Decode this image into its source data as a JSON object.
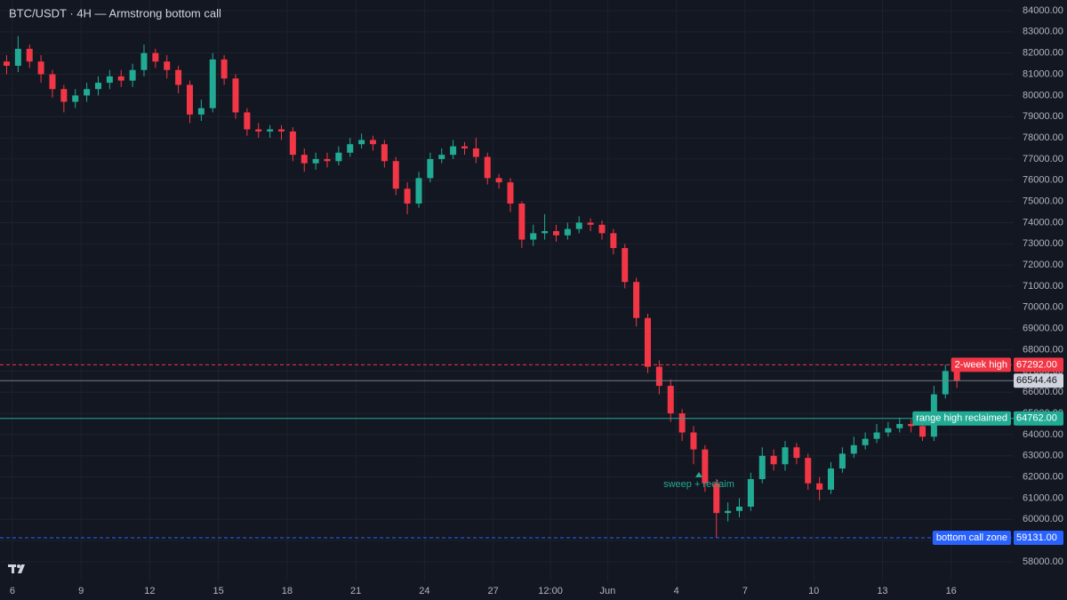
{
  "chart_data": {
    "type": "candlestick",
    "title": "BTC/USDT · 4H — Armstrong bottom call",
    "up_color": "#22ab94",
    "down_color": "#f23645",
    "grid": true,
    "x": [
      -0.25,
      0.25,
      0.75,
      1.25,
      1.75,
      2.25,
      2.75,
      3.25,
      3.75,
      4.25,
      4.75,
      5.25,
      5.75,
      6.25,
      6.75,
      7.25,
      7.75,
      8.25,
      8.75,
      9.25,
      9.75,
      10.25,
      10.75,
      11.25,
      11.75,
      12.25,
      12.75,
      13.25,
      13.75,
      14.25,
      14.75,
      15.25,
      15.75,
      16.25,
      16.75,
      17.25,
      17.75,
      18.25,
      18.75,
      19.25,
      19.75,
      20.25,
      20.75,
      21.25,
      21.75,
      22.25,
      22.75,
      23.25,
      23.75,
      24.25,
      24.75,
      25.25,
      25.75,
      26.25,
      26.75,
      27.25,
      27.75,
      28.25,
      28.75,
      29.25,
      29.75,
      30.25,
      30.75,
      31.25,
      31.75,
      32.25,
      32.75,
      33.25,
      33.75,
      34.25,
      34.75,
      35.25,
      35.75,
      36.25,
      36.75,
      37.25,
      37.75,
      38.25,
      38.75,
      39.25,
      39.75,
      40.25,
      40.75,
      41.25
    ],
    "open": [
      81600,
      81400,
      82200,
      81600,
      81000,
      80300,
      79700,
      80000,
      80300,
      80600,
      80900,
      80700,
      81200,
      82000,
      81600,
      81200,
      80500,
      79100,
      79400,
      81700,
      80800,
      79200,
      78400,
      78300,
      78400,
      78300,
      77200,
      76800,
      77000,
      76900,
      77300,
      77700,
      77900,
      77700,
      76900,
      75600,
      74900,
      76100,
      77000,
      77200,
      77600,
      77500,
      77100,
      76100,
      75900,
      74900,
      73200,
      73500,
      73600,
      73400,
      73700,
      74000,
      73900,
      73500,
      72800,
      71200,
      69500,
      67200,
      66300,
      65000,
      64100,
      63300,
      61700,
      60300,
      60400,
      60600,
      61900,
      63000,
      62600,
      63400,
      62900,
      61700,
      61400,
      62400,
      63100,
      63500,
      63800,
      64100,
      64300,
      64500,
      64400,
      63900,
      65900,
      67000
    ],
    "high": [
      81900,
      82800,
      82400,
      81900,
      81200,
      80500,
      80300,
      80600,
      80900,
      81200,
      81200,
      81500,
      82400,
      82200,
      81900,
      81400,
      80700,
      79800,
      82000,
      81900,
      81000,
      79400,
      78700,
      78600,
      78600,
      78500,
      77500,
      77300,
      77300,
      77600,
      78000,
      78200,
      78100,
      77900,
      77100,
      75900,
      76400,
      77300,
      77500,
      77900,
      77800,
      78000,
      77300,
      76300,
      76100,
      75000,
      73900,
      74400,
      73900,
      74000,
      74300,
      74200,
      74100,
      73700,
      73000,
      71400,
      69700,
      67500,
      66600,
      65200,
      64400,
      63500,
      61900,
      60800,
      61000,
      62200,
      63400,
      63300,
      63700,
      63600,
      63100,
      62000,
      62700,
      63400,
      63900,
      64100,
      64500,
      64600,
      64800,
      64700,
      64600,
      66300,
      67292,
      67100
    ],
    "low": [
      81000,
      81100,
      81300,
      80600,
      79900,
      79200,
      79400,
      79700,
      80000,
      80300,
      80400,
      80400,
      80900,
      81300,
      80800,
      80100,
      78700,
      78800,
      79200,
      80500,
      78900,
      78100,
      78000,
      78000,
      77900,
      76900,
      76400,
      76500,
      76600,
      76700,
      77100,
      77500,
      77400,
      76600,
      75300,
      74400,
      74700,
      75900,
      76800,
      77000,
      77200,
      76800,
      75800,
      75600,
      74500,
      72800,
      72900,
      73200,
      73100,
      73200,
      73500,
      73600,
      73200,
      72500,
      70900,
      69100,
      66900,
      65900,
      64600,
      63700,
      62600,
      61300,
      59150,
      59900,
      60100,
      60400,
      61700,
      62300,
      62300,
      62600,
      61400,
      60900,
      61200,
      62200,
      62900,
      63300,
      63600,
      63900,
      64100,
      64100,
      63700,
      63700,
      65700,
      66200
    ],
    "close": [
      81400,
      82200,
      81600,
      81000,
      80300,
      79700,
      80000,
      80300,
      80600,
      80900,
      80700,
      81200,
      82000,
      81600,
      81200,
      80500,
      79100,
      79400,
      81700,
      80800,
      79200,
      78400,
      78300,
      78400,
      78300,
      77200,
      76800,
      77000,
      76900,
      77300,
      77700,
      77900,
      77700,
      76900,
      75600,
      74900,
      76100,
      77000,
      77200,
      77600,
      77500,
      77100,
      76100,
      75900,
      74900,
      73200,
      73500,
      73600,
      73400,
      73700,
      74000,
      73900,
      73500,
      72800,
      71200,
      69500,
      67200,
      66300,
      65000,
      64100,
      63300,
      61700,
      60300,
      60400,
      60600,
      61900,
      63000,
      62600,
      63400,
      62900,
      61700,
      61400,
      62400,
      63100,
      63500,
      63800,
      64100,
      64300,
      64500,
      64400,
      63900,
      65900,
      67000,
      66540
    ],
    "xlim": [
      -0.54,
      43.73
    ],
    "xticks": [
      {
        "value": 0,
        "label": "6"
      },
      {
        "value": 3,
        "label": "9"
      },
      {
        "value": 6,
        "label": "12"
      },
      {
        "value": 9,
        "label": "15"
      },
      {
        "value": 12,
        "label": "18"
      },
      {
        "value": 15,
        "label": "21"
      },
      {
        "value": 18,
        "label": "24"
      },
      {
        "value": 21,
        "label": "27"
      },
      {
        "value": 23.5,
        "label": "12:00"
      },
      {
        "value": 26,
        "label": "Jun"
      },
      {
        "value": 29,
        "label": "4"
      },
      {
        "value": 32,
        "label": "7"
      },
      {
        "value": 35,
        "label": "10"
      },
      {
        "value": 38,
        "label": "13"
      },
      {
        "value": 41,
        "label": "16"
      }
    ],
    "ylim": [
      57035,
      84503
    ],
    "yticks": [
      {
        "value": 58000,
        "label": "58000.00"
      },
      {
        "value": 59000,
        "label": "59000.00"
      },
      {
        "value": 60000,
        "label": "60000.00"
      },
      {
        "value": 61000,
        "label": "61000.00"
      },
      {
        "value": 62000,
        "label": "62000.00"
      },
      {
        "value": 63000,
        "label": "63000.00"
      },
      {
        "value": 64000,
        "label": "64000.00"
      },
      {
        "value": 65000,
        "label": "65000.00"
      },
      {
        "value": 66000,
        "label": "66000.00"
      },
      {
        "value": 67000,
        "label": "67000.00"
      },
      {
        "value": 68000,
        "label": "68000.00"
      },
      {
        "value": 69000,
        "label": "69000.00"
      },
      {
        "value": 70000,
        "label": "70000.00"
      },
      {
        "value": 71000,
        "label": "71000.00"
      },
      {
        "value": 72000,
        "label": "72000.00"
      },
      {
        "value": 73000,
        "label": "73000.00"
      },
      {
        "value": 74000,
        "label": "74000.00"
      },
      {
        "value": 75000,
        "label": "75000.00"
      },
      {
        "value": 76000,
        "label": "76000.00"
      },
      {
        "value": 77000,
        "label": "77000.00"
      },
      {
        "value": 78000,
        "label": "78000.00"
      },
      {
        "value": 79000,
        "label": "79000.00"
      },
      {
        "value": 80000,
        "label": "80000.00"
      },
      {
        "value": 81000,
        "label": "81000.00"
      },
      {
        "value": 82000,
        "label": "82000.00"
      },
      {
        "value": 83000,
        "label": "83000.00"
      },
      {
        "value": 84000,
        "label": "84000.00"
      }
    ],
    "price_lines": [
      {
        "name": "2-week high",
        "value": 67292,
        "value_label": "67292.00",
        "color": "#f23645",
        "style": "dashed"
      },
      {
        "name": "range high reclaimed",
        "value": 64762,
        "value_label": "64762.00",
        "color": "#22ab94",
        "style": "solid"
      },
      {
        "name": "bottom call zone",
        "value": 59131,
        "value_label": "59131.00",
        "color": "#2962ff",
        "style": "dashed"
      }
    ],
    "last_price": {
      "value": 66544.46,
      "label": "66544.46",
      "color": "#787b86"
    },
    "annotation": "sweep + reclaim"
  }
}
